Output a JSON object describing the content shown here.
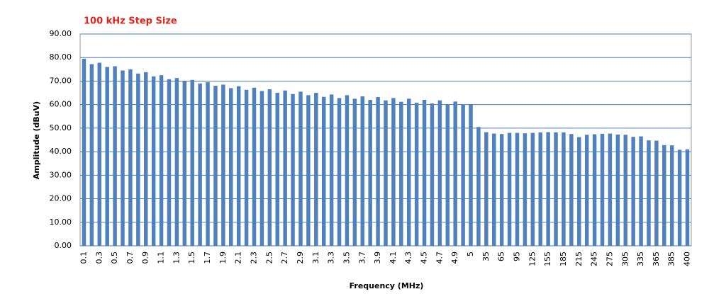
{
  "chart_data": {
    "type": "bar",
    "title": "100 kHz Step Size",
    "x_label": "Frequency (MHz)",
    "y_label": "Amplitude (dBuV)",
    "categories": [
      "0.1",
      null,
      "0.3",
      null,
      "0.5",
      null,
      "0.7",
      null,
      "0.9",
      null,
      "1.1",
      null,
      "1.3",
      null,
      "1.5",
      null,
      "1.7",
      null,
      "1.9",
      null,
      "2.1",
      null,
      "2.3",
      null,
      "2.5",
      null,
      "2.7",
      null,
      "2.9",
      null,
      "3.1",
      null,
      "3.3",
      null,
      "3.5",
      null,
      "3.7",
      null,
      "3.9",
      null,
      "4.1",
      null,
      "4.3",
      null,
      "4.5",
      null,
      "4.7",
      null,
      "4.9",
      null,
      "5",
      null,
      "35",
      null,
      "65",
      null,
      "95",
      null,
      "125",
      null,
      "155",
      null,
      "185",
      null,
      "215",
      null,
      "245",
      null,
      "275",
      null,
      "305",
      null,
      "335",
      null,
      "365",
      null,
      "385",
      null,
      "400"
    ],
    "values": [
      79.5,
      77.2,
      77.8,
      76,
      76.3,
      74.5,
      75,
      73.2,
      73.8,
      72,
      72.5,
      70.8,
      71.3,
      70,
      70.5,
      69,
      69.5,
      68,
      68.5,
      67,
      67.8,
      66.3,
      67.2,
      65.8,
      66.5,
      65,
      66,
      64.5,
      65.5,
      64,
      65,
      63.3,
      64.3,
      62.8,
      64,
      62.5,
      63.5,
      62,
      63.2,
      61.8,
      62.8,
      61.2,
      62.5,
      60.8,
      62,
      60.5,
      61.8,
      60.2,
      61.3,
      60,
      60.2,
      50.5,
      48.3,
      47.7,
      47.5,
      48,
      48,
      47.8,
      48,
      48.2,
      48.3,
      48.2,
      48.2,
      47.5,
      46.2,
      47.2,
      47.4,
      47.6,
      47.7,
      47.3,
      47.2,
      46.3,
      46.5,
      44.8,
      44.7,
      42.8,
      42.7,
      40.8,
      41
    ],
    "color": "#4f81bd",
    "ylim": [
      0,
      90
    ],
    "yticks": [
      {
        "value": 0,
        "label": "0.00"
      },
      {
        "value": 10,
        "label": "10.00"
      },
      {
        "value": 20,
        "label": "20.00"
      },
      {
        "value": 30,
        "label": "30.00"
      },
      {
        "value": 40,
        "label": "40.00"
      },
      {
        "value": 50,
        "label": "50.00"
      },
      {
        "value": 60,
        "label": "60.00"
      },
      {
        "value": 70,
        "label": "70.00"
      },
      {
        "value": 80,
        "label": "80.00"
      },
      {
        "value": 90,
        "label": "90.00"
      }
    ],
    "grid": true
  }
}
